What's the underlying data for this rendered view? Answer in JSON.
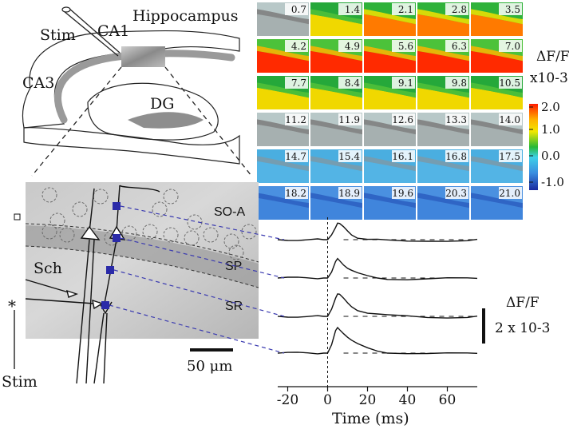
{
  "hippocampus": {
    "title": "Hippocampus",
    "labels": {
      "stim": "Stim",
      "ca1": "CA1",
      "ca3": "CA3",
      "dg": "DG"
    }
  },
  "frames": {
    "times": [
      "0.7",
      "1.4",
      "2.1",
      "2.8",
      "3.5",
      "4.2",
      "4.9",
      "5.6",
      "6.3",
      "7.0",
      "7.7",
      "8.4",
      "9.1",
      "9.8",
      "10.5",
      "11.2",
      "11.9",
      "12.6",
      "13.3",
      "14.0",
      "14.7",
      "15.4",
      "16.1",
      "16.8",
      "17.5",
      "18.2",
      "18.9",
      "19.6",
      "20.3",
      "21.0"
    ],
    "intensity": [
      0.1,
      0.5,
      0.6,
      0.7,
      0.75,
      0.85,
      0.9,
      0.9,
      0.85,
      0.85,
      0.55,
      0.55,
      0.55,
      0.5,
      0.45,
      0.05,
      0.0,
      -0.05,
      -0.1,
      -0.15,
      -0.35,
      -0.4,
      -0.4,
      -0.45,
      -0.45,
      -0.55,
      -0.6,
      -0.6,
      -0.6,
      -0.6
    ]
  },
  "colorbar": {
    "label": "ΔF/F",
    "unit": "x10-3",
    "ticks": [
      "2.0",
      "1.0",
      "0.0",
      "-1.0"
    ],
    "colors": [
      "#ff1a00",
      "#ffb000",
      "#f2e800",
      "#27b838",
      "#3fd0e8",
      "#3a8ee0",
      "#1a2a9e"
    ]
  },
  "inset": {
    "layers": {
      "so_a": "SO-A",
      "sp": "SP",
      "sr": "SR"
    },
    "sch_label": "Sch",
    "stim_label": "Stim",
    "asterisk": "*",
    "scalebar_label": "50 μm"
  },
  "traces": {
    "x_ticks": [
      "-20",
      "0",
      "20",
      "40",
      "60"
    ],
    "x_axis_label": "Time (ms)",
    "scale_label_line1": "ΔF/F",
    "scale_label_line2": "2 x 10-3"
  },
  "chart_data": {
    "type": "line",
    "xlabel": "Time (ms)",
    "xlim": [
      -25,
      75
    ],
    "x_ticks": [
      -20,
      0,
      20,
      40,
      60
    ],
    "x": [
      -25,
      -20,
      -15,
      -10,
      -5,
      -2,
      0,
      2,
      4,
      5,
      6,
      8,
      10,
      12,
      15,
      20,
      25,
      30,
      40,
      50,
      60,
      70,
      75
    ],
    "series": [
      {
        "values": [
          0,
          0,
          0,
          0,
          0,
          0,
          0,
          0.2,
          0.55,
          0.7,
          0.65,
          0.5,
          0.35,
          0.22,
          0.1,
          0.03,
          0,
          -0.05,
          -0.08,
          -0.05,
          -0.03,
          -0.02,
          0
        ]
      },
      {
        "values": [
          0,
          0,
          0,
          0,
          0,
          0,
          0,
          0.25,
          0.65,
          0.8,
          0.75,
          0.58,
          0.42,
          0.3,
          0.18,
          0.08,
          0.02,
          -0.02,
          -0.05,
          -0.05,
          -0.03,
          -0.02,
          0
        ]
      },
      {
        "values": [
          0,
          0,
          0,
          0,
          0,
          0,
          0,
          0.3,
          0.8,
          0.95,
          0.9,
          0.72,
          0.55,
          0.42,
          0.28,
          0.15,
          0.08,
          0.03,
          0,
          -0.03,
          -0.03,
          -0.02,
          0
        ]
      },
      {
        "values": [
          0,
          0,
          0,
          0,
          0,
          0,
          0,
          0.35,
          0.9,
          1.05,
          1.0,
          0.85,
          0.68,
          0.52,
          0.36,
          0.2,
          0.1,
          0.04,
          0,
          -0.03,
          -0.03,
          -0.02,
          0
        ]
      }
    ]
  }
}
